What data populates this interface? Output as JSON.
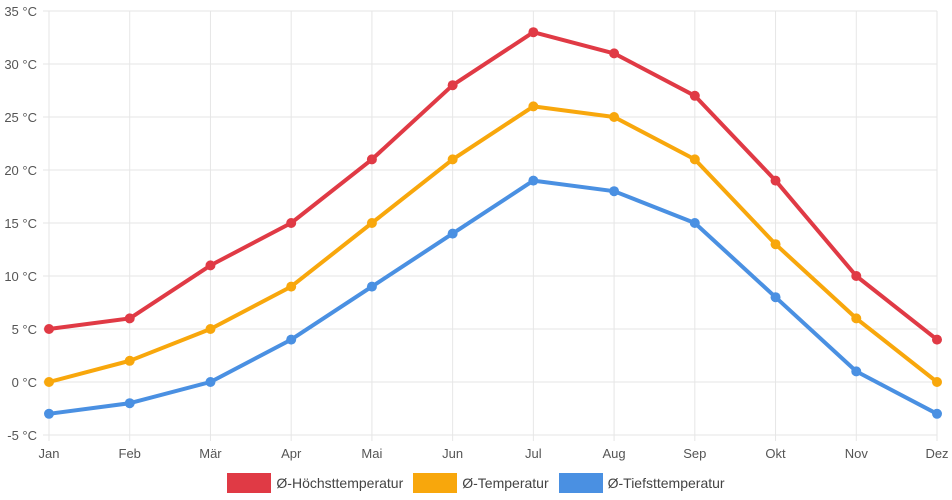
{
  "chart_data": {
    "type": "line",
    "title": "",
    "xlabel": "",
    "ylabel": "",
    "categories": [
      "Jan",
      "Feb",
      "Mär",
      "Apr",
      "Mai",
      "Jun",
      "Jul",
      "Aug",
      "Sep",
      "Okt",
      "Nov",
      "Dez"
    ],
    "ylim": [
      -5,
      35
    ],
    "yticks": [
      {
        "value": 35,
        "label": "35 °C"
      },
      {
        "value": 30,
        "label": "30 °C"
      },
      {
        "value": 25,
        "label": "25 °C"
      },
      {
        "value": 20,
        "label": "20 °C"
      },
      {
        "value": 15,
        "label": "15 °C"
      },
      {
        "value": 10,
        "label": "10 °C"
      },
      {
        "value": 5,
        "label": "5 °C"
      },
      {
        "value": 0,
        "label": "0 °C"
      },
      {
        "value": -5,
        "label": "-5 °C"
      }
    ],
    "grid": true,
    "legend_position": "bottom",
    "series": [
      {
        "name": "Ø-Höchsttemperatur",
        "color": "#e03a45",
        "values": [
          5,
          6,
          11,
          15,
          21,
          28,
          33,
          31,
          27,
          19,
          10,
          4
        ]
      },
      {
        "name": "Ø-Temperatur",
        "color": "#f8a70c",
        "values": [
          0,
          2,
          5,
          9,
          15,
          21,
          26,
          25,
          21,
          13,
          6,
          0
        ]
      },
      {
        "name": "Ø-Tiefsttemperatur",
        "color": "#4a90e2",
        "values": [
          -3,
          -2,
          0,
          4,
          9,
          14,
          19,
          18,
          15,
          8,
          1,
          -3
        ]
      }
    ]
  }
}
